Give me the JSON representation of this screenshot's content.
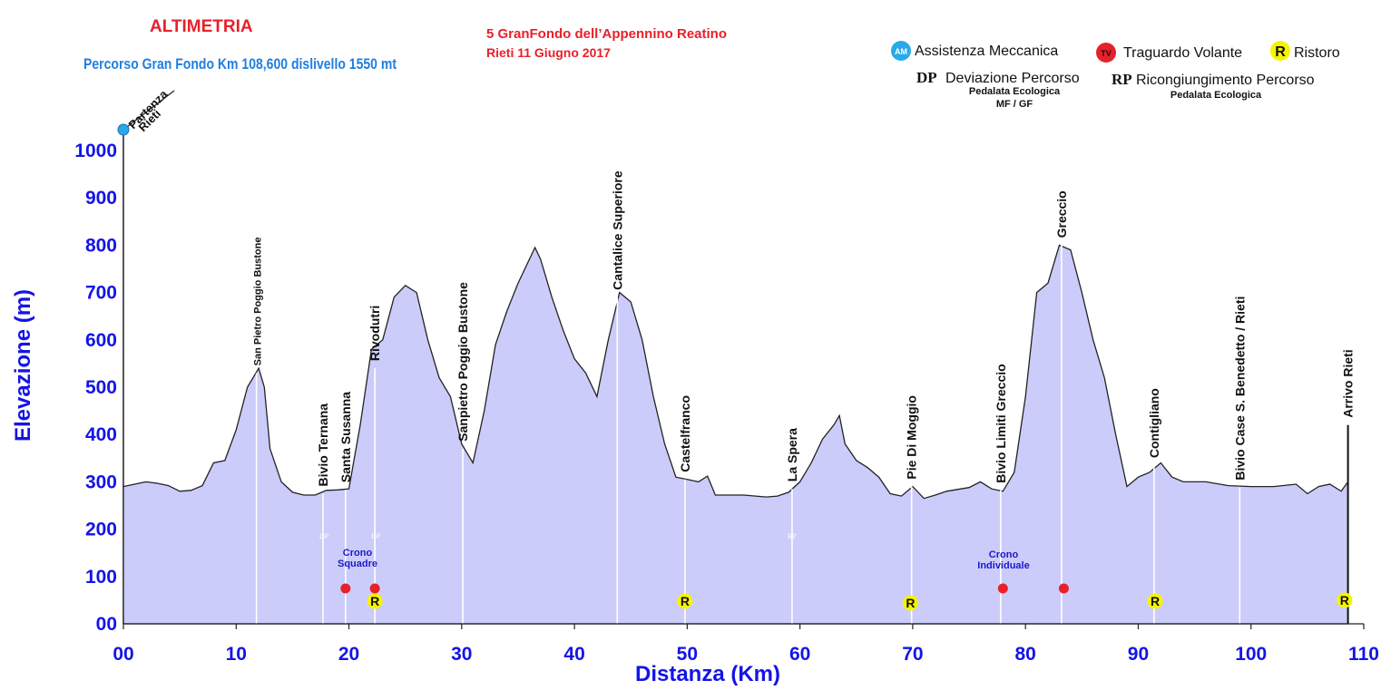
{
  "header": {
    "title": "ALTIMETRIA",
    "subtitle": "Percorso  Gran  Fondo Km 108,600 dislivello 1550 mt",
    "event_name": "5 GranFondo dell’Appennino Reatino",
    "event_date": "Rieti  11 Giugno 2017"
  },
  "legend": {
    "mechanic": {
      "icon": "mechanic-assistance-icon",
      "badge": "AM",
      "label": "Assistenza Meccanica"
    },
    "sprint": {
      "icon": "sprint-finish-icon",
      "badge": "TV",
      "label": "Traguardo Volante"
    },
    "food": {
      "icon": "refreshment-icon",
      "badge": "R",
      "label": "Ristoro"
    },
    "deviation": {
      "code": "DP",
      "label": "Deviazione Percorso",
      "sub1": "Pedalata Ecologica",
      "sub2": "MF / GF"
    },
    "rejoin": {
      "code": "RP",
      "label": "Ricongiungimento Percorso",
      "sub1": "Pedalata Ecologica"
    }
  },
  "start": {
    "line1": "Partenza",
    "line2": "Rieti"
  },
  "annotations": {
    "crono_squadre": [
      "Crono",
      "Squadre"
    ],
    "crono_individuale": [
      "Crono",
      "Individuale"
    ],
    "dp_label": "DP",
    "rp_label": "RP"
  },
  "chart_data": {
    "type": "area",
    "xlabel": "Distanza (Km)",
    "ylabel": "Elevazione (m)",
    "xlim": [
      0,
      110
    ],
    "ylim": [
      0,
      1000
    ],
    "x_ticks": [
      "00",
      "10",
      "20",
      "30",
      "40",
      "50",
      "60",
      "70",
      "80",
      "90",
      "100",
      "110"
    ],
    "y_ticks": [
      "00",
      "100",
      "200",
      "300",
      "400",
      "500",
      "600",
      "700",
      "800",
      "900",
      "1000"
    ],
    "colors": {
      "fill": "#ccccfa",
      "line": "#222222",
      "ticks": "#1414e6",
      "title": "#e8202a",
      "subtitle": "#1f7fe0",
      "sprint": "#e8202a",
      "food": "#f5f500"
    },
    "profile": [
      [
        0,
        290
      ],
      [
        1,
        295
      ],
      [
        2,
        300
      ],
      [
        3,
        297
      ],
      [
        4,
        292
      ],
      [
        5,
        280
      ],
      [
        6,
        282
      ],
      [
        7,
        292
      ],
      [
        8,
        340
      ],
      [
        9,
        345
      ],
      [
        10,
        410
      ],
      [
        11,
        500
      ],
      [
        12,
        540
      ],
      [
        12.5,
        500
      ],
      [
        13,
        370
      ],
      [
        14,
        300
      ],
      [
        15,
        278
      ],
      [
        16,
        272
      ],
      [
        17,
        272
      ],
      [
        18,
        282
      ],
      [
        19,
        283
      ],
      [
        20,
        285
      ],
      [
        21,
        420
      ],
      [
        22,
        580
      ],
      [
        23,
        600
      ],
      [
        24,
        690
      ],
      [
        25,
        715
      ],
      [
        26,
        700
      ],
      [
        27,
        600
      ],
      [
        28,
        520
      ],
      [
        29,
        480
      ],
      [
        30,
        380
      ],
      [
        31,
        340
      ],
      [
        32,
        450
      ],
      [
        33,
        590
      ],
      [
        34,
        660
      ],
      [
        35,
        720
      ],
      [
        36.5,
        795
      ],
      [
        37,
        770
      ],
      [
        38,
        690
      ],
      [
        39,
        620
      ],
      [
        40,
        560
      ],
      [
        41,
        530
      ],
      [
        42,
        480
      ],
      [
        43,
        600
      ],
      [
        44,
        700
      ],
      [
        45,
        680
      ],
      [
        46,
        600
      ],
      [
        47,
        480
      ],
      [
        48,
        380
      ],
      [
        49,
        310
      ],
      [
        50,
        305
      ],
      [
        51,
        300
      ],
      [
        51.8,
        312
      ],
      [
        52.5,
        272
      ],
      [
        55,
        272
      ],
      [
        57,
        268
      ],
      [
        58,
        270
      ],
      [
        59,
        278
      ],
      [
        60,
        300
      ],
      [
        61,
        340
      ],
      [
        62,
        390
      ],
      [
        63,
        420
      ],
      [
        63.5,
        440
      ],
      [
        64,
        380
      ],
      [
        65,
        345
      ],
      [
        66,
        330
      ],
      [
        67,
        310
      ],
      [
        68,
        275
      ],
      [
        69,
        270
      ],
      [
        70,
        290
      ],
      [
        71,
        265
      ],
      [
        72,
        272
      ],
      [
        73,
        280
      ],
      [
        75,
        288
      ],
      [
        76,
        300
      ],
      [
        77,
        285
      ],
      [
        78,
        280
      ],
      [
        79,
        320
      ],
      [
        80,
        480
      ],
      [
        81,
        700
      ],
      [
        82,
        720
      ],
      [
        83,
        800
      ],
      [
        84,
        790
      ],
      [
        85,
        700
      ],
      [
        86,
        600
      ],
      [
        87,
        520
      ],
      [
        88,
        400
      ],
      [
        89,
        290
      ],
      [
        90,
        310
      ],
      [
        91,
        320
      ],
      [
        92,
        340
      ],
      [
        93,
        310
      ],
      [
        94,
        300
      ],
      [
        96,
        300
      ],
      [
        98,
        292
      ],
      [
        100,
        290
      ],
      [
        102,
        290
      ],
      [
        104,
        295
      ],
      [
        105,
        275
      ],
      [
        106,
        290
      ],
      [
        107,
        295
      ],
      [
        108,
        280
      ],
      [
        108.6,
        300
      ]
    ],
    "waypoints": [
      {
        "name": "San  Pietro Poggio Bustone",
        "km": 11.8,
        "elev": 530,
        "size": 11
      },
      {
        "name": "Bivio Ternana",
        "km": 17.7,
        "elev": 275,
        "size": 14
      },
      {
        "name": "Santa Susanna",
        "km": 19.7,
        "elev": 283,
        "size": 14
      },
      {
        "name": "Rivodutri",
        "km": 22.3,
        "elev": 540,
        "size": 14
      },
      {
        "name": "Sanpietro Poggio Bustone",
        "km": 30.1,
        "elev": 370,
        "size": 14
      },
      {
        "name": "Cantalice Superiore",
        "km": 43.8,
        "elev": 690,
        "size": 14
      },
      {
        "name": "Castelfranco",
        "km": 49.8,
        "elev": 305,
        "size": 14
      },
      {
        "name": "La Spera",
        "km": 59.3,
        "elev": 285,
        "size": 14
      },
      {
        "name": "Pie Di Moggio",
        "km": 69.9,
        "elev": 290,
        "size": 14
      },
      {
        "name": "Bivio Limiti Greccio",
        "km": 77.8,
        "elev": 282,
        "size": 14
      },
      {
        "name": "Greccio",
        "km": 83.2,
        "elev": 800,
        "size": 14
      },
      {
        "name": "Contigliano",
        "km": 91.4,
        "elev": 335,
        "size": 14
      },
      {
        "name": "Bivio Case S. Benedetto / Rieti",
        "km": 99,
        "elev": 288,
        "size": 14
      },
      {
        "name": "Arrivo  Rieti",
        "km": 108.6,
        "elev": 420,
        "size": 14
      }
    ],
    "sprints_km": [
      19.7,
      22.3,
      78,
      83.4
    ],
    "food_km": [
      22.3,
      49.8,
      69.8,
      91.5,
      108.3
    ],
    "dp_km": [
      17.7,
      22.3
    ],
    "rp_km": [
      59.3
    ]
  }
}
